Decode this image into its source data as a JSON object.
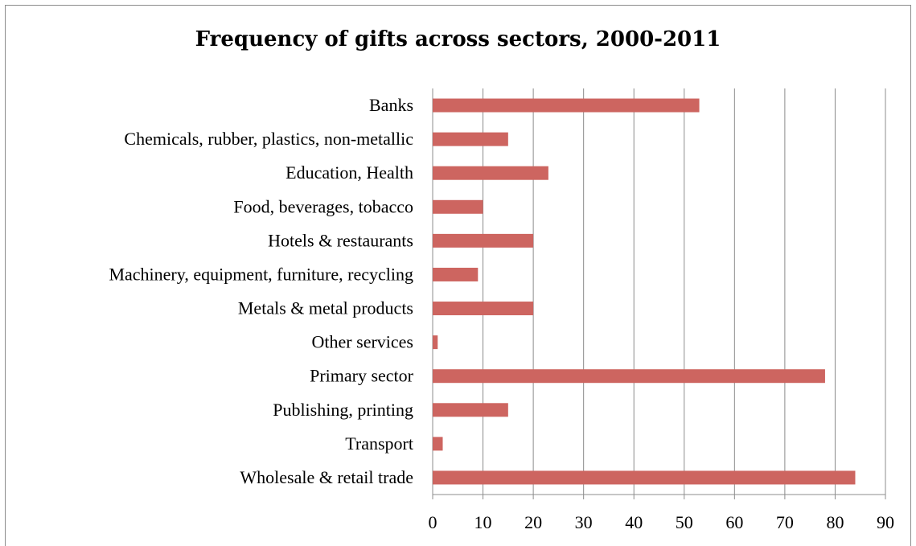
{
  "chart_data": {
    "type": "bar",
    "orientation": "horizontal",
    "title": "Frequency of gifts across sectors, 2000-2011",
    "categories": [
      "Banks",
      "Chemicals, rubber, plastics, non-metallic",
      "Education, Health",
      "Food, beverages, tobacco",
      "Hotels & restaurants",
      "Machinery, equipment, furniture, recycling",
      "Metals & metal products",
      "Other services",
      "Primary sector",
      "Publishing, printing",
      "Transport",
      "Wholesale & retail trade"
    ],
    "values": [
      53,
      15,
      23,
      10,
      20,
      9,
      20,
      1,
      78,
      15,
      2,
      84
    ],
    "xlim": [
      0,
      90
    ],
    "ticks": [
      "0",
      "10",
      "20",
      "30",
      "40",
      "50",
      "60",
      "70",
      "80",
      "90"
    ],
    "xlabel": "",
    "ylabel": "",
    "grid": true,
    "legend": "none",
    "bar_color": "#cd6560",
    "grid_color": "#8c8c8c"
  }
}
